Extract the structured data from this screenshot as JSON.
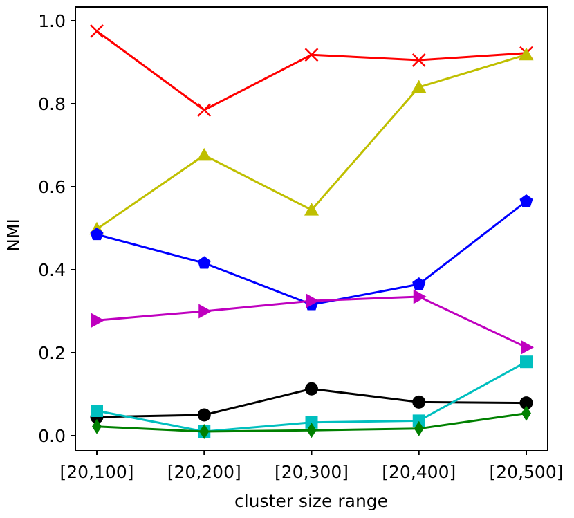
{
  "chart_data": {
    "type": "line",
    "title": "",
    "xlabel": "cluster size range",
    "ylabel": "NMI",
    "categories": [
      "[20,100]",
      "[20,200]",
      "[20,300]",
      "[20,400]",
      "[20,500]"
    ],
    "ylim": [
      -0.035,
      1.03
    ],
    "yticks": [
      "0.0",
      "0.2",
      "0.4",
      "0.6",
      "0.8",
      "1.0"
    ],
    "grid": false,
    "legend": "none",
    "series": [
      {
        "color": "#ff0000",
        "marker": "x",
        "values": [
          0.975,
          0.785,
          0.918,
          0.905,
          0.922
        ]
      },
      {
        "color": "#bfbf00",
        "marker": "triangle-up",
        "values": [
          0.498,
          0.676,
          0.544,
          0.84,
          0.918
        ]
      },
      {
        "color": "#0000ff",
        "marker": "pentagon",
        "values": [
          0.485,
          0.416,
          0.316,
          0.365,
          0.565
        ]
      },
      {
        "color": "#bf00bf",
        "marker": "triangle-right",
        "values": [
          0.278,
          0.3,
          0.325,
          0.335,
          0.213
        ]
      },
      {
        "color": "#000000",
        "marker": "circle",
        "values": [
          0.045,
          0.05,
          0.113,
          0.081,
          0.079
        ]
      },
      {
        "color": "#00bfbf",
        "marker": "square",
        "values": [
          0.06,
          0.01,
          0.032,
          0.036,
          0.178
        ]
      },
      {
        "color": "#008000",
        "marker": "diamond-thin",
        "values": [
          0.022,
          0.01,
          0.013,
          0.017,
          0.054
        ]
      }
    ]
  }
}
